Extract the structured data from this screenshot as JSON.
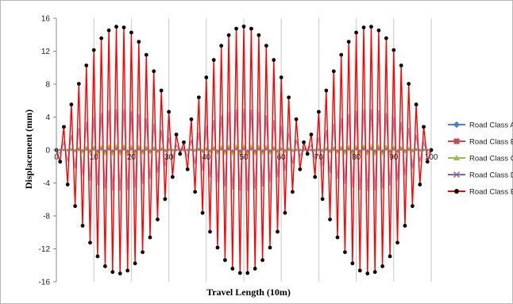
{
  "chart_data": {
    "type": "line",
    "xlabel": "Travel Length (10m)",
    "ylabel": "Displacement (mm)",
    "xlim": [
      0,
      100
    ],
    "ylim": [
      -16,
      16
    ],
    "x_ticks": [
      "0",
      "10",
      "20",
      "30",
      "40",
      "50",
      "60",
      "70",
      "80",
      "90",
      "100"
    ],
    "y_ticks": [
      "16",
      "12",
      "8",
      "4",
      "0",
      "-4",
      "-8",
      "-12",
      "-16"
    ],
    "grid": "vertical gridlines",
    "legend_position": "right",
    "series": [
      {
        "name": "Road Class A",
        "color": "#4f81bd",
        "marker": "diamond",
        "amplitude": 0.1
      },
      {
        "name": "Road Class B",
        "color": "#c0504d",
        "marker": "square",
        "amplitude": 0.3
      },
      {
        "name": "Road Class C",
        "color": "#9bbb59",
        "marker": "triangle",
        "amplitude": 0.6
      },
      {
        "name": "Road Class D",
        "color": "#8064a2",
        "marker": "x",
        "amplitude": 5.0
      },
      {
        "name": "Road Class E",
        "color": "#ff0000",
        "marker": "circle",
        "marker_color": "#000000",
        "amplitude": 15.0
      }
    ],
    "envelope_cycles": 3,
    "points_per_series": 101
  }
}
